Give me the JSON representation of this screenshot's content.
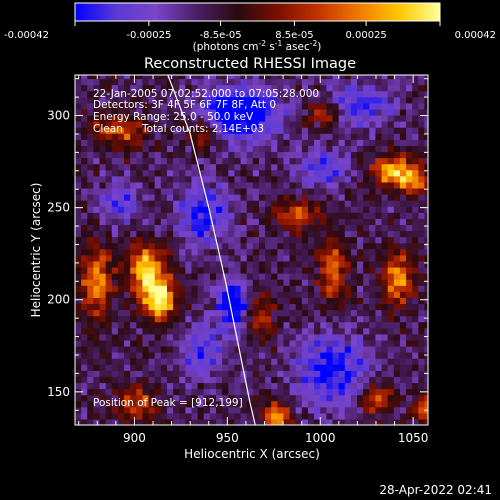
{
  "chart_data": {
    "type": "heatmap",
    "title": "Reconstructed RHESSI Image",
    "xlabel": "Heliocentric X (arcsec)",
    "ylabel": "Heliocentric Y (arcsec)",
    "xlim": [
      868,
      1058
    ],
    "ylim": [
      132,
      322
    ],
    "x_ticks": [
      900,
      950,
      1000,
      1050
    ],
    "y_ticks": [
      150,
      200,
      250,
      300
    ],
    "colorbar": {
      "ticks": [
        "-0.00042",
        "-0.00025",
        "-8.5e-05",
        "8.5e-05",
        "0.00025",
        "0.00042"
      ],
      "tick_values": [
        -0.00042,
        -0.00025,
        -8.5e-05,
        8.5e-05,
        0.00025,
        0.00042
      ],
      "range": [
        -0.00042,
        0.00042
      ],
      "unit_main": "(photons cm",
      "unit_exp1": "-2",
      "unit_mid": " s",
      "unit_exp2": "-1",
      "unit_end": " asec",
      "unit_exp3": "-2",
      "unit_close": ")"
    },
    "annotations": {
      "time_range": "22-Jan-2005 07:02:52.000 to 07:05:28.000",
      "detectors": "Detectors: 3F 4F 5F 6F 7F 8F, Att 0",
      "energy": "Energy Range: 25.0 - 50.0 keV",
      "clean": "Clean",
      "counts": "Total counts: 2.14E+03",
      "peak": "Position of Peak = [912,199]"
    },
    "limb_curve": [
      [
        918,
        322
      ],
      [
        930,
        290
      ],
      [
        940,
        250
      ],
      [
        949,
        210
      ],
      [
        956,
        175
      ],
      [
        962,
        145
      ],
      [
        965,
        132
      ]
    ],
    "colormap": [
      "#0000ff",
      "#5a39d6",
      "#7a44c8",
      "#4b1f66",
      "#2a0a10",
      "#7a0f00",
      "#c43200",
      "#f07a00",
      "#ffc800",
      "#ffff9a"
    ],
    "hotspots": [
      {
        "x": 912,
        "y": 199,
        "amp": 1.0,
        "sx": 6,
        "sy": 8
      },
      {
        "x": 905,
        "y": 215,
        "amp": 0.85,
        "sx": 7,
        "sy": 10
      },
      {
        "x": 878,
        "y": 208,
        "amp": 0.7,
        "sx": 6,
        "sy": 14
      },
      {
        "x": 890,
        "y": 290,
        "amp": 0.55,
        "sx": 10,
        "sy": 6
      },
      {
        "x": 1038,
        "y": 268,
        "amp": 0.9,
        "sx": 8,
        "sy": 6
      },
      {
        "x": 1050,
        "y": 262,
        "amp": 0.6,
        "sx": 5,
        "sy": 5
      },
      {
        "x": 1040,
        "y": 210,
        "amp": 0.7,
        "sx": 6,
        "sy": 10
      },
      {
        "x": 1005,
        "y": 215,
        "amp": 0.6,
        "sx": 5,
        "sy": 12
      },
      {
        "x": 985,
        "y": 245,
        "amp": 0.55,
        "sx": 9,
        "sy": 6
      },
      {
        "x": 965,
        "y": 190,
        "amp": 0.5,
        "sx": 6,
        "sy": 8
      },
      {
        "x": 975,
        "y": 135,
        "amp": 0.75,
        "sx": 5,
        "sy": 6
      },
      {
        "x": 1028,
        "y": 145,
        "amp": 0.65,
        "sx": 6,
        "sy": 6
      },
      {
        "x": 1055,
        "y": 140,
        "amp": 0.6,
        "sx": 4,
        "sy": 6
      },
      {
        "x": 900,
        "y": 142,
        "amp": 0.55,
        "sx": 8,
        "sy": 6
      },
      {
        "x": 935,
        "y": 290,
        "amp": 0.5,
        "sx": 6,
        "sy": 6
      },
      {
        "x": 1000,
        "y": 300,
        "amp": 0.45,
        "sx": 7,
        "sy": 5
      }
    ],
    "coldspots": [
      {
        "x": 955,
        "y": 300,
        "amp": -0.9,
        "sx": 14,
        "sy": 10
      },
      {
        "x": 952,
        "y": 195,
        "amp": -0.85,
        "sx": 6,
        "sy": 9
      },
      {
        "x": 1005,
        "y": 160,
        "amp": -0.6,
        "sx": 14,
        "sy": 14
      },
      {
        "x": 935,
        "y": 245,
        "amp": -0.55,
        "sx": 10,
        "sy": 12
      },
      {
        "x": 1000,
        "y": 270,
        "amp": -0.45,
        "sx": 10,
        "sy": 8
      },
      {
        "x": 1020,
        "y": 305,
        "amp": -0.5,
        "sx": 12,
        "sy": 8
      },
      {
        "x": 890,
        "y": 250,
        "amp": -0.4,
        "sx": 8,
        "sy": 8
      },
      {
        "x": 935,
        "y": 170,
        "amp": -0.45,
        "sx": 8,
        "sy": 10
      }
    ]
  },
  "footer": {
    "timestamp": "28-Apr-2022 02:41"
  }
}
